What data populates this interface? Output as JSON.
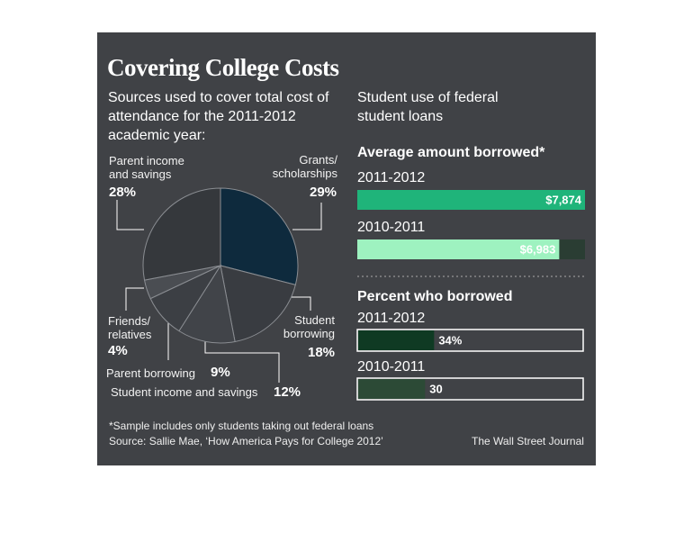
{
  "title": "Covering College Costs",
  "right_heading": "Student use of federal student loans",
  "chart_data": [
    {
      "type": "pie",
      "title": "Sources used to cover total cost of attendance for the 2011-2012 academic year:",
      "categories": [
        "Grants/ scholarships",
        "Student borrowing",
        "Student income and savings",
        "Parent borrowing",
        "Friends/ relatives",
        "Parent income and savings"
      ],
      "values": [
        29,
        18,
        12,
        9,
        4,
        28
      ],
      "value_labels": [
        "29%",
        "18%",
        "12%",
        "9%",
        "4%",
        "28%"
      ],
      "colors": [
        "#0e2a3d",
        "#393c41",
        "#414449",
        "#3c3f44",
        "#4a4d52",
        "#35383c"
      ]
    },
    {
      "type": "hbar",
      "title": "Average amount borrowed*",
      "categories": [
        "2011-2012",
        "2010-2011"
      ],
      "values": [
        7874,
        6983
      ],
      "value_labels": [
        "$7,874",
        "$6,983"
      ],
      "colors": [
        "#1fb47a",
        "#9ef2c0"
      ],
      "xlim": [
        0,
        7874
      ]
    },
    {
      "type": "hbar-track",
      "title": "Percent who borrowed",
      "categories": [
        "2011-2012",
        "2010-2011"
      ],
      "values": [
        34,
        30
      ],
      "value_labels": [
        "34%",
        "30"
      ],
      "colors": [
        "#0f3a23",
        "#2c4a36"
      ],
      "xlim": [
        0,
        100
      ]
    }
  ],
  "note": "*Sample includes only students taking out federal loans",
  "source": "Source: Sallie Mae, ‘How America Pays for College 2012’",
  "credit": "The Wall Street Journal"
}
